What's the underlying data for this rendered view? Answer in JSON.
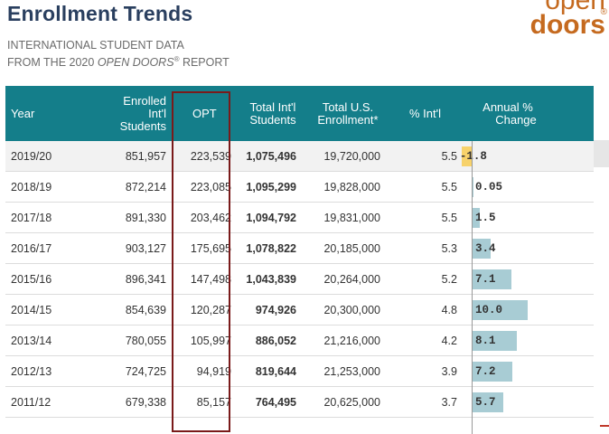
{
  "header": {
    "title": "Enrollment Trends",
    "subtitle_line1": "INTERNATIONAL STUDENT DATA",
    "subtitle_line2_pre": "FROM THE 2020 ",
    "subtitle_line2_em": "OPEN DOORS",
    "subtitle_line2_reg": "®",
    "subtitle_line2_post": " REPORT"
  },
  "logo": {
    "top": "open",
    "bottom": "doors",
    "reg": "®"
  },
  "columns": {
    "year": "Year",
    "enrolled_1": "Enrolled",
    "enrolled_2": "Int'l",
    "enrolled_3": "Students",
    "opt": "OPT",
    "total_intl_1": "Total Int'l",
    "total_intl_2": "Students",
    "total_us_1": "Total U.S.",
    "total_us_2": "Enrollment*",
    "pct_intl": "% Int'l",
    "annual_1": "Annual %",
    "annual_2": "Change"
  },
  "rows": [
    {
      "year": "2019/20",
      "enrolled": "851,957",
      "opt": "223,539",
      "total_intl": "1,075,496",
      "total_us": "19,720,000",
      "pct": "5.5",
      "change": "-1.8",
      "change_value": -1.8
    },
    {
      "year": "2018/19",
      "enrolled": "872,214",
      "opt": "223,085",
      "total_intl": "1,095,299",
      "total_us": "19,828,000",
      "pct": "5.5",
      "change": "0.05",
      "change_value": 0.05
    },
    {
      "year": "2017/18",
      "enrolled": "891,330",
      "opt": "203,462",
      "total_intl": "1,094,792",
      "total_us": "19,831,000",
      "pct": "5.5",
      "change": "1.5",
      "change_value": 1.5
    },
    {
      "year": "2016/17",
      "enrolled": "903,127",
      "opt": "175,695",
      "total_intl": "1,078,822",
      "total_us": "20,185,000",
      "pct": "5.3",
      "change": "3.4",
      "change_value": 3.4
    },
    {
      "year": "2015/16",
      "enrolled": "896,341",
      "opt": "147,498",
      "total_intl": "1,043,839",
      "total_us": "20,264,000",
      "pct": "5.2",
      "change": "7.1",
      "change_value": 7.1
    },
    {
      "year": "2014/15",
      "enrolled": "854,639",
      "opt": "120,287",
      "total_intl": "974,926",
      "total_us": "20,300,000",
      "pct": "4.8",
      "change": "10.0",
      "change_value": 10.0
    },
    {
      "year": "2013/14",
      "enrolled": "780,055",
      "opt": "105,997",
      "total_intl": "886,052",
      "total_us": "21,216,000",
      "pct": "4.2",
      "change": "8.1",
      "change_value": 8.1
    },
    {
      "year": "2012/13",
      "enrolled": "724,725",
      "opt": "94,919",
      "total_intl": "819,644",
      "total_us": "21,253,000",
      "pct": "3.9",
      "change": "7.2",
      "change_value": 7.2
    },
    {
      "year": "2011/12",
      "enrolled": "679,338",
      "opt": "85,157",
      "total_intl": "764,495",
      "total_us": "20,625,000",
      "pct": "3.7",
      "change": "5.7",
      "change_value": 5.7
    }
  ],
  "colors": {
    "header_bg": "#147e8a",
    "positive_bar": "#a8ccd4",
    "negative_bar": "#f7d26b",
    "highlight_box": "#7a1a1a",
    "logo": "#c56a1f"
  }
}
